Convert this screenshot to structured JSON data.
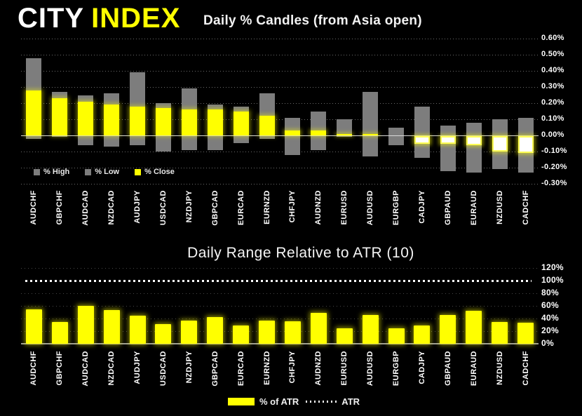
{
  "header": {
    "logo_city": "CITY",
    "logo_index": "INDEX"
  },
  "colors": {
    "background": "#000000",
    "bar_gray": "#7d7d7d",
    "bar_yellow": "#ffff00",
    "negative_close_fill": "#ffffff",
    "text": "#ffffff",
    "logo_yellow": "#ffff00"
  },
  "chart_data": [
    {
      "type": "bar",
      "title": "Daily % Candles (from Asia open)",
      "categories": [
        "AUDCHF",
        "GBPCHF",
        "AUDCAD",
        "NZDCAD",
        "AUDJPY",
        "USDCAD",
        "NZDJPY",
        "GBPCAD",
        "EURCAD",
        "EURNZD",
        "CHFJPY",
        "AUDNZD",
        "EURUSD",
        "AUDUSD",
        "EURGBP",
        "CADJPY",
        "GBPAUD",
        "EURAUD",
        "NZDUSD",
        "CADCHF"
      ],
      "series": [
        {
          "name": "% High",
          "color": "#7d7d7d",
          "values": [
            0.48,
            0.27,
            0.25,
            0.26,
            0.39,
            0.2,
            0.29,
            0.19,
            0.18,
            0.26,
            0.11,
            0.15,
            0.1,
            0.27,
            0.05,
            0.18,
            0.06,
            0.08,
            0.1,
            0.11
          ]
        },
        {
          "name": "% Low",
          "color": "#7d7d7d",
          "values": [
            -0.02,
            -0.01,
            -0.06,
            -0.07,
            -0.06,
            -0.1,
            -0.09,
            -0.09,
            -0.05,
            -0.02,
            -0.12,
            -0.09,
            -0.01,
            -0.13,
            -0.06,
            -0.14,
            -0.22,
            -0.23,
            -0.21,
            -0.23
          ]
        },
        {
          "name": "% Close",
          "color": "#ffff00",
          "values": [
            0.28,
            0.23,
            0.21,
            0.19,
            0.18,
            0.17,
            0.16,
            0.16,
            0.15,
            0.12,
            0.03,
            0.03,
            0.01,
            0.01,
            0.0,
            -0.05,
            -0.05,
            -0.06,
            -0.1,
            -0.11
          ]
        }
      ],
      "ylim": [
        -0.3,
        0.6
      ],
      "ytick_labels": [
        "0.60%",
        "0.50%",
        "0.40%",
        "0.30%",
        "0.20%",
        "0.10%",
        "0.00%",
        "-0.10%",
        "-0.20%",
        "-0.30%"
      ],
      "grid": true,
      "legend_position": "inside-bottom-left"
    },
    {
      "type": "bar",
      "title": "Daily Range Relative to ATR (10)",
      "categories": [
        "AUDCHF",
        "GBPCHF",
        "AUDCAD",
        "NZDCAD",
        "AUDJPY",
        "USDCAD",
        "NZDJPY",
        "GBPCAD",
        "EURCAD",
        "EURNZD",
        "CHFJPY",
        "AUDNZD",
        "EURUSD",
        "AUDUSD",
        "EURGBP",
        "CADJPY",
        "GBPAUD",
        "EURAUD",
        "NZDUSD",
        "CADCHF"
      ],
      "series": [
        {
          "name": "% of ATR",
          "color": "#ffff00",
          "values": [
            55,
            35,
            60,
            53,
            45,
            31,
            37,
            42,
            29,
            37,
            36,
            49,
            25,
            46,
            24,
            29,
            46,
            52,
            35,
            33
          ]
        }
      ],
      "reference_line": {
        "label": "ATR",
        "value": 100,
        "style": "dotted"
      },
      "ylim": [
        0,
        120
      ],
      "ytick_labels": [
        "120%",
        "100%",
        "80%",
        "60%",
        "40%",
        "20%",
        "0%"
      ],
      "grid": true,
      "legend_position": "bottom-center"
    }
  ]
}
